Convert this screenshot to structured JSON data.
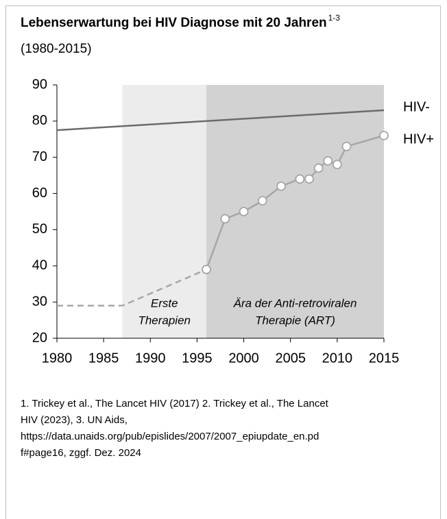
{
  "chart_data": {
    "type": "line",
    "title": "Lebenserwartung bei HIV Diagnose mit 20 Jahren",
    "title_superscript": "1-3",
    "subtitle": "(1980-2015)",
    "xlim": [
      1980,
      2015
    ],
    "ylim": [
      20,
      90
    ],
    "xticks": [
      1980,
      1985,
      1990,
      1995,
      2000,
      2005,
      2010,
      2015
    ],
    "yticks": [
      20,
      30,
      40,
      50,
      60,
      70,
      80,
      90
    ],
    "regions": [
      {
        "from": 1987,
        "to": 1996,
        "color": "#ececec",
        "label": [
          "Erste",
          "Therapien"
        ]
      },
      {
        "from": 1996,
        "to": 2015,
        "color": "#d2d2d2",
        "label": [
          "Ära der Anti-retroviralen",
          "Therapie (ART)"
        ]
      }
    ],
    "series": [
      {
        "name": "HIV-",
        "color": "#6b6b6b",
        "x": [
          1980,
          2015
        ],
        "values": [
          77.5,
          83
        ]
      },
      {
        "name": "HIV+",
        "color": "#a6a6a6",
        "dashed_until": 1996,
        "x": [
          1980,
          1987,
          1996,
          1998,
          2000,
          2002,
          2004,
          2006,
          2007,
          2008,
          2009,
          2010,
          2011,
          2015
        ],
        "values": [
          29,
          29,
          39,
          53,
          55,
          58,
          62,
          64,
          64,
          67,
          69,
          68,
          73,
          76
        ]
      }
    ],
    "footnote": [
      "1. Trickey et al., The Lancet HIV (2017) 2. Trickey et al., The Lancet",
      "HIV (2023), 3. UN Aids,",
      "https://data.unaids.org/pub/epislides/2007/2007_epiupdate_en.pd",
      "f#page16, zggf. Dez. 2024"
    ]
  }
}
